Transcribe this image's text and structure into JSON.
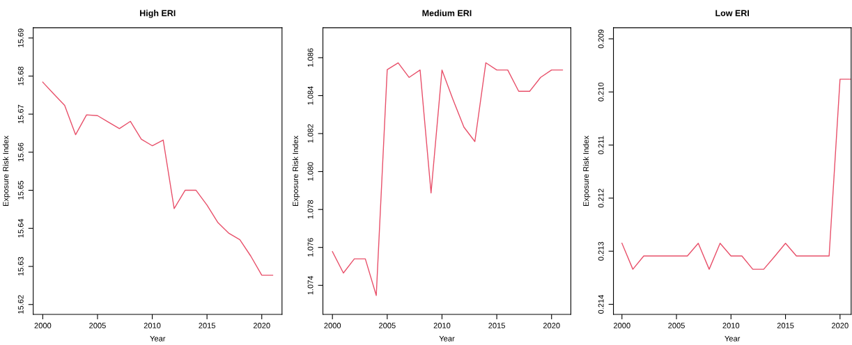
{
  "chart_data": [
    {
      "type": "line",
      "title": "High ERI",
      "xlabel": "Year",
      "ylabel": "Exposure Risk Index",
      "x": [
        2000,
        2001,
        2002,
        2003,
        2004,
        2005,
        2006,
        2007,
        2008,
        2009,
        2010,
        2011,
        2012,
        2013,
        2014,
        2015,
        2016,
        2017,
        2018,
        2019,
        2020,
        2021
      ],
      "series": [
        {
          "color": "#e8506a",
          "values": [
            15.6784,
            15.6753,
            15.6723,
            15.6646,
            15.6698,
            15.6696,
            15.6679,
            15.6662,
            15.6681,
            15.6634,
            15.6617,
            15.6632,
            15.6452,
            15.65,
            15.65,
            15.6461,
            15.6415,
            15.6387,
            15.637,
            15.6327,
            15.6277,
            15.6277
          ]
        }
      ],
      "xlim": [
        1999.13,
        2021.85
      ],
      "ylim": [
        15.6174,
        15.6927
      ],
      "xticks": [
        2000,
        2005,
        2010,
        2015,
        2020
      ],
      "yticks": [
        15.62,
        15.63,
        15.64,
        15.65,
        15.66,
        15.67,
        15.68,
        15.69
      ],
      "grid": false
    },
    {
      "type": "line",
      "title": "Medium ERI",
      "xlabel": "Year",
      "ylabel": "Exposure Risk Index",
      "x": [
        2000,
        2001,
        2002,
        2003,
        2004,
        2005,
        2006,
        2007,
        2008,
        2009,
        2010,
        2011,
        2012,
        2013,
        2014,
        2015,
        2016,
        2017,
        2018,
        2019,
        2020,
        2021
      ],
      "series": [
        {
          "color": "#e8506a",
          "values": [
            1.07578,
            1.07465,
            1.0754,
            1.0754,
            1.07347,
            1.08537,
            1.08573,
            1.08496,
            1.08535,
            1.07887,
            1.08535,
            1.0838,
            1.08234,
            1.08158,
            1.08573,
            1.08535,
            1.08535,
            1.08423,
            1.08423,
            1.08496,
            1.08535,
            1.08535
          ]
        }
      ],
      "xlim": [
        1999.13,
        2021.76
      ],
      "ylim": [
        1.07247,
        1.08758
      ],
      "xticks": [
        2000,
        2005,
        2010,
        2015,
        2020
      ],
      "yticks": [
        {
          "value": 1.074,
          "label": "1.074"
        },
        {
          "value": 1.076,
          "label": "1.076"
        },
        {
          "value": 1.078,
          "label": "1.078"
        },
        {
          "value": 1.08,
          "label": "1.080"
        },
        {
          "value": 1.082,
          "label": "1.082"
        },
        {
          "value": 1.084,
          "label": "1.084"
        },
        {
          "value": 1.086,
          "label": "1.086"
        }
      ],
      "grid": false
    },
    {
      "type": "line",
      "title": "Low ERI",
      "xlabel": "Year",
      "ylabel": "Exposure Risk Index",
      "x": [
        2000,
        2001,
        2002,
        2003,
        2004,
        2005,
        2006,
        2007,
        2008,
        2009,
        2010,
        2011,
        2012,
        2013,
        2014,
        2015,
        2016,
        2017,
        2018,
        2019,
        2020,
        2021
      ],
      "series": [
        {
          "color": "#e8506a",
          "values": [
            0.21285,
            0.21334,
            0.21309,
            0.21309,
            0.21309,
            0.21309,
            0.21309,
            0.21285,
            0.21334,
            0.21285,
            0.21309,
            0.21309,
            0.21334,
            0.21334,
            0.2131,
            0.21285,
            0.21309,
            0.21309,
            0.21309,
            0.21309,
            0.20976,
            0.20976
          ]
        }
      ],
      "xlim": [
        1999.22,
        2021.02
      ],
      "ylim": [
        0.21419,
        0.20879
      ],
      "xticks": [
        2000,
        2005,
        2010,
        2015,
        2020
      ],
      "yticks": [
        {
          "value": 0.209,
          "label": "0.209"
        },
        {
          "value": 0.21,
          "label": "0.210"
        },
        {
          "value": 0.211,
          "label": "0.211"
        },
        {
          "value": 0.212,
          "label": "0.212"
        },
        {
          "value": 0.213,
          "label": "0.213"
        },
        {
          "value": 0.214,
          "label": "0.214"
        }
      ],
      "grid": false
    }
  ]
}
